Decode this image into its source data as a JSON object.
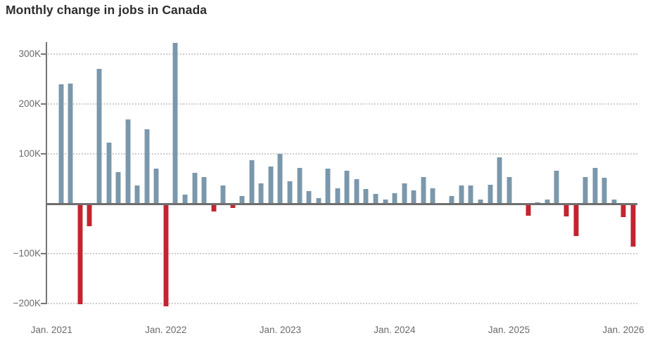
{
  "title": "Monthly change in jobs in Canada",
  "y_axis": {
    "tick_labels": [
      "300K",
      "200K",
      "100K",
      "−100K",
      "−200K"
    ],
    "tick_values": [
      300,
      200,
      100,
      -100,
      -200
    ]
  },
  "x_axis": {
    "tick_labels": [
      "Jan. 2021",
      "Jan. 2022",
      "Jan. 2023",
      "Jan. 2024",
      "Jan. 2025",
      "Jan. 2026"
    ]
  },
  "chart_data": {
    "type": "bar",
    "title": "Monthly change in jobs in Canada",
    "unit_note": "values in thousands (K)",
    "ylim": [
      -220,
      330
    ],
    "yticks": [
      300,
      200,
      100,
      0,
      -100,
      -200
    ],
    "grid": "horizontal dotted",
    "legend": "none",
    "colors": {
      "positive": "#7b97ab",
      "negative": "#c3242f"
    },
    "x": [
      "Feb. 2021",
      "Mar. 2021",
      "Apr. 2021",
      "May 2021",
      "Jun. 2021",
      "Jul. 2021",
      "Aug. 2021",
      "Sep. 2021",
      "Oct. 2021",
      "Nov. 2021",
      "Dec. 2021",
      "Jan. 2022",
      "Feb. 2022",
      "Mar. 2022",
      "Apr. 2022",
      "May 2022",
      "Jun. 2022",
      "Jul. 2022",
      "Aug. 2022",
      "Sep. 2022",
      "Oct. 2022",
      "Nov. 2022",
      "Dec. 2022",
      "Jan. 2023",
      "Feb. 2023",
      "Mar. 2023",
      "Apr. 2023",
      "May 2023",
      "Jun. 2023",
      "Jul. 2023",
      "Aug. 2023",
      "Sep. 2023",
      "Oct. 2023",
      "Nov. 2023",
      "Dec. 2023",
      "Jan. 2024",
      "Feb. 2024",
      "Mar. 2024",
      "Apr. 2024",
      "May 2024",
      "Jun. 2024",
      "Jul. 2024",
      "Aug. 2024",
      "Sep. 2024",
      "Oct. 2024",
      "Nov. 2024",
      "Dec. 2024",
      "Jan. 2025",
      "Feb. 2025",
      "Mar. 2025",
      "Apr. 2025",
      "May 2025",
      "Jun. 2025",
      "Jul. 2025",
      "Aug. 2025",
      "Sep. 2025",
      "Oct. 2025",
      "Nov. 2025",
      "Dec. 2025",
      "Jan. 2026",
      "Feb. 2026"
    ],
    "values": [
      240,
      241,
      -200,
      -44,
      270,
      122,
      64,
      169,
      36,
      150,
      71,
      -204,
      322,
      19,
      62,
      53,
      -14,
      37,
      -7,
      15,
      87,
      41,
      75,
      100,
      45,
      72,
      26,
      11,
      71,
      31,
      66,
      49,
      29,
      20,
      8,
      21,
      41,
      27,
      54,
      31,
      0,
      16,
      36,
      36,
      9,
      38,
      93,
      53,
      0,
      -22,
      3,
      8,
      66,
      -24,
      -63,
      53,
      72,
      52,
      9,
      -25,
      -85
    ]
  }
}
